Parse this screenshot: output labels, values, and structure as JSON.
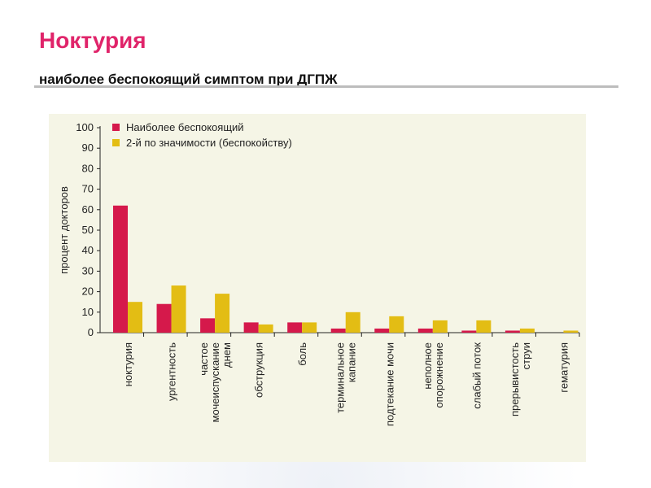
{
  "slide": {
    "title": "Ноктурия",
    "subtitle": "наиболее беспокоящий симптом при ДГПЖ"
  },
  "chart_data": {
    "type": "bar",
    "title": "",
    "ylabel": "процент докторов",
    "xlabel": "",
    "ylim": [
      0,
      100
    ],
    "yticks": [
      0,
      10,
      20,
      30,
      40,
      50,
      60,
      70,
      80,
      90,
      100
    ],
    "grid": false,
    "legend_position": "top-left",
    "categories": [
      [
        "ноктурия"
      ],
      [
        "ургентность"
      ],
      [
        "частое",
        "мочеиспускание",
        "днем"
      ],
      [
        "обструкция"
      ],
      [
        "боль"
      ],
      [
        "терминальное",
        "капание"
      ],
      [
        "подтекание мочи"
      ],
      [
        "неполное",
        "опорожнение"
      ],
      [
        "слабый поток"
      ],
      [
        "прерывистость",
        "струи"
      ],
      [
        "гематурия"
      ]
    ],
    "series": [
      {
        "name": "Наиболее беспокоящий",
        "color": "#d5194b",
        "values": [
          62,
          14,
          7,
          5,
          5,
          2,
          2,
          2,
          1,
          1,
          0
        ]
      },
      {
        "name": "2-й по значимости (беспокойству)",
        "color": "#e3bd14",
        "values": [
          15,
          23,
          19,
          4,
          5,
          10,
          8,
          6,
          6,
          2,
          1
        ]
      }
    ]
  }
}
